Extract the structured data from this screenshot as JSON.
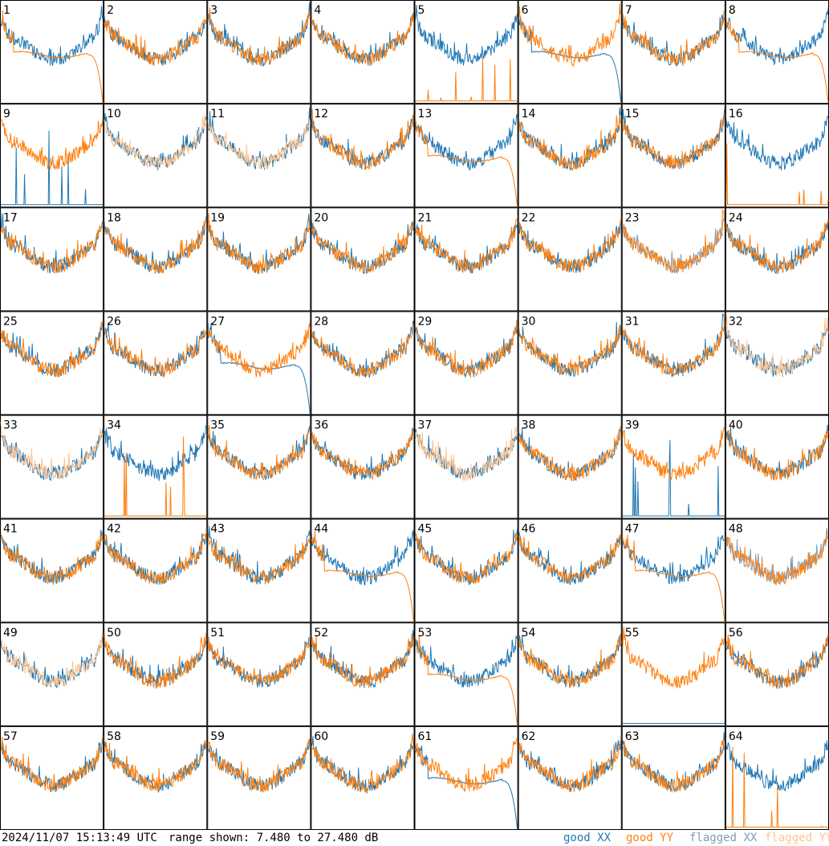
{
  "chart_data": {
    "type": "line",
    "panel_count": 64,
    "panel_labels": [
      "1",
      "2",
      "3",
      "4",
      "5",
      "6",
      "7",
      "8",
      "9",
      "10",
      "11",
      "12",
      "13",
      "14",
      "15",
      "16",
      "17",
      "18",
      "19",
      "20",
      "21",
      "22",
      "23",
      "24",
      "25",
      "26",
      "27",
      "28",
      "29",
      "30",
      "31",
      "32",
      "33",
      "34",
      "35",
      "36",
      "37",
      "38",
      "39",
      "40",
      "41",
      "42",
      "43",
      "44",
      "45",
      "46",
      "47",
      "48",
      "49",
      "50",
      "51",
      "52",
      "53",
      "54",
      "55",
      "56",
      "57",
      "58",
      "59",
      "60",
      "61",
      "62",
      "63",
      "64"
    ],
    "ylim": [
      7.48,
      27.48
    ],
    "series": [
      {
        "name": "good XX"
      },
      {
        "name": "good YY"
      },
      {
        "name": "flagged XX"
      },
      {
        "name": "flagged YY"
      }
    ],
    "colors": {
      "good_xx": "#1f77b4",
      "good_yy": "#ff7f0e",
      "flagged_xx": "#7f9bb8",
      "flagged_yy": "#ffc38f"
    },
    "flagged_xx_panels": [
      23,
      48
    ],
    "flagged_yy_panels": [
      10,
      11,
      32,
      33,
      37,
      49
    ],
    "dropout_xx_panels": [
      6,
      27,
      61
    ],
    "dropout_yy_panels": [
      1,
      8,
      13,
      44,
      47,
      53
    ],
    "zero_xx_panels": [
      9,
      39,
      55
    ],
    "zero_yy_panels": [
      5,
      16,
      34,
      64
    ]
  },
  "footer": {
    "timestamp": "2024/11/07 15:13:49 UTC",
    "range": "range shown: 7.480 to 27.480 dB",
    "legend": {
      "good": "good",
      "flagged": "flagged",
      "xx": "XX",
      "yy": "YY"
    }
  }
}
